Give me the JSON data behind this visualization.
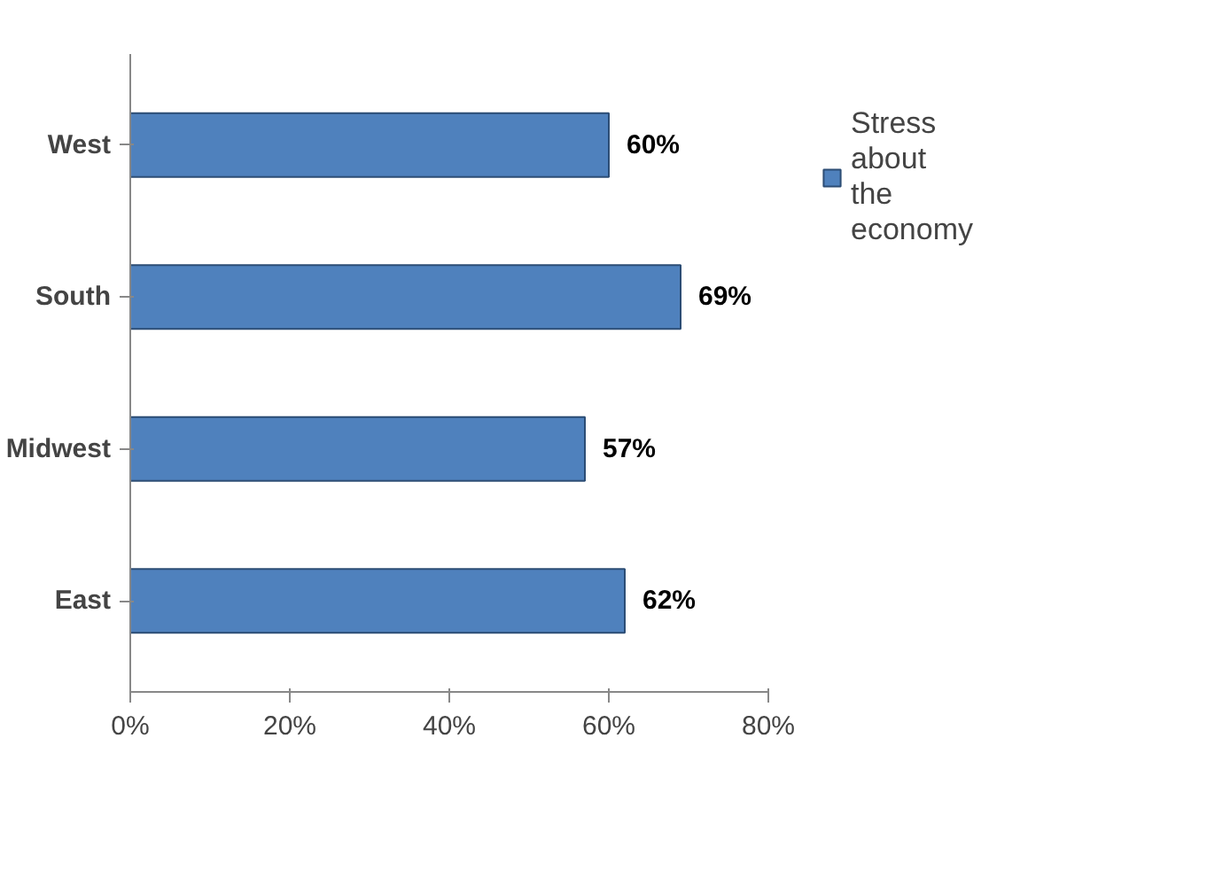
{
  "chart_data": {
    "type": "bar",
    "orientation": "horizontal",
    "categories": [
      "West",
      "South",
      "Midwest",
      "East"
    ],
    "series": [
      {
        "name": "Stress about the economy",
        "color": "#4f81bd",
        "values": [
          60,
          69,
          57,
          62
        ]
      }
    ],
    "value_labels": [
      "60%",
      "69%",
      "57%",
      "62%"
    ],
    "xlim": [
      0,
      80
    ],
    "xticks": [
      {
        "value": 0,
        "label": "0%"
      },
      {
        "value": 20,
        "label": "20%"
      },
      {
        "value": 40,
        "label": "40%"
      },
      {
        "value": 60,
        "label": "60%"
      },
      {
        "value": 80,
        "label": "80%"
      }
    ],
    "grid": false,
    "legend": "right"
  }
}
